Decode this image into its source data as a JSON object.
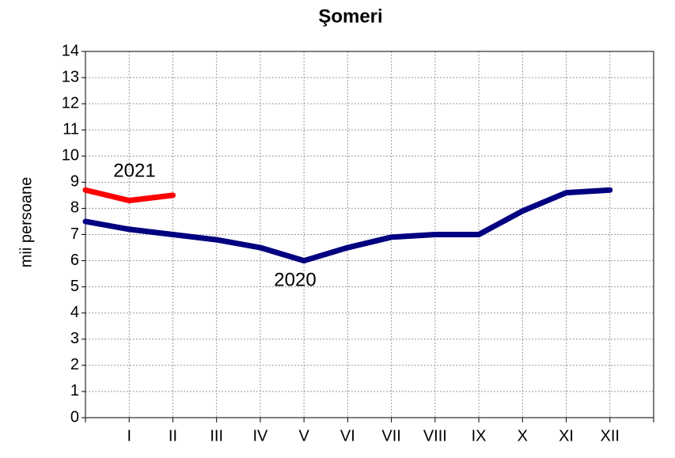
{
  "chart_data": {
    "type": "line",
    "title": "Şomeri",
    "ylabel": "mii persoane",
    "categories": [
      null,
      "I",
      "II",
      "III",
      "IV",
      "V",
      "VI",
      "VII",
      "VIII",
      "IX",
      "X",
      "XI",
      "XII",
      null
    ],
    "series": [
      {
        "name": "2020",
        "color": "#000080",
        "values": [
          7.5,
          7.2,
          7.0,
          6.8,
          6.5,
          6.0,
          6.5,
          6.9,
          7.0,
          7.0,
          7.9,
          8.6,
          8.7,
          null
        ]
      },
      {
        "name": "2021",
        "color": "#ff0000",
        "values": [
          8.7,
          8.3,
          8.5,
          null,
          null,
          null,
          null,
          null,
          null,
          null,
          null,
          null,
          null,
          null
        ]
      }
    ],
    "ylim": [
      0,
      14
    ],
    "yticks": [
      0,
      1,
      2,
      3,
      4,
      5,
      6,
      7,
      8,
      9,
      10,
      11,
      12,
      13,
      14
    ],
    "grid": true
  }
}
